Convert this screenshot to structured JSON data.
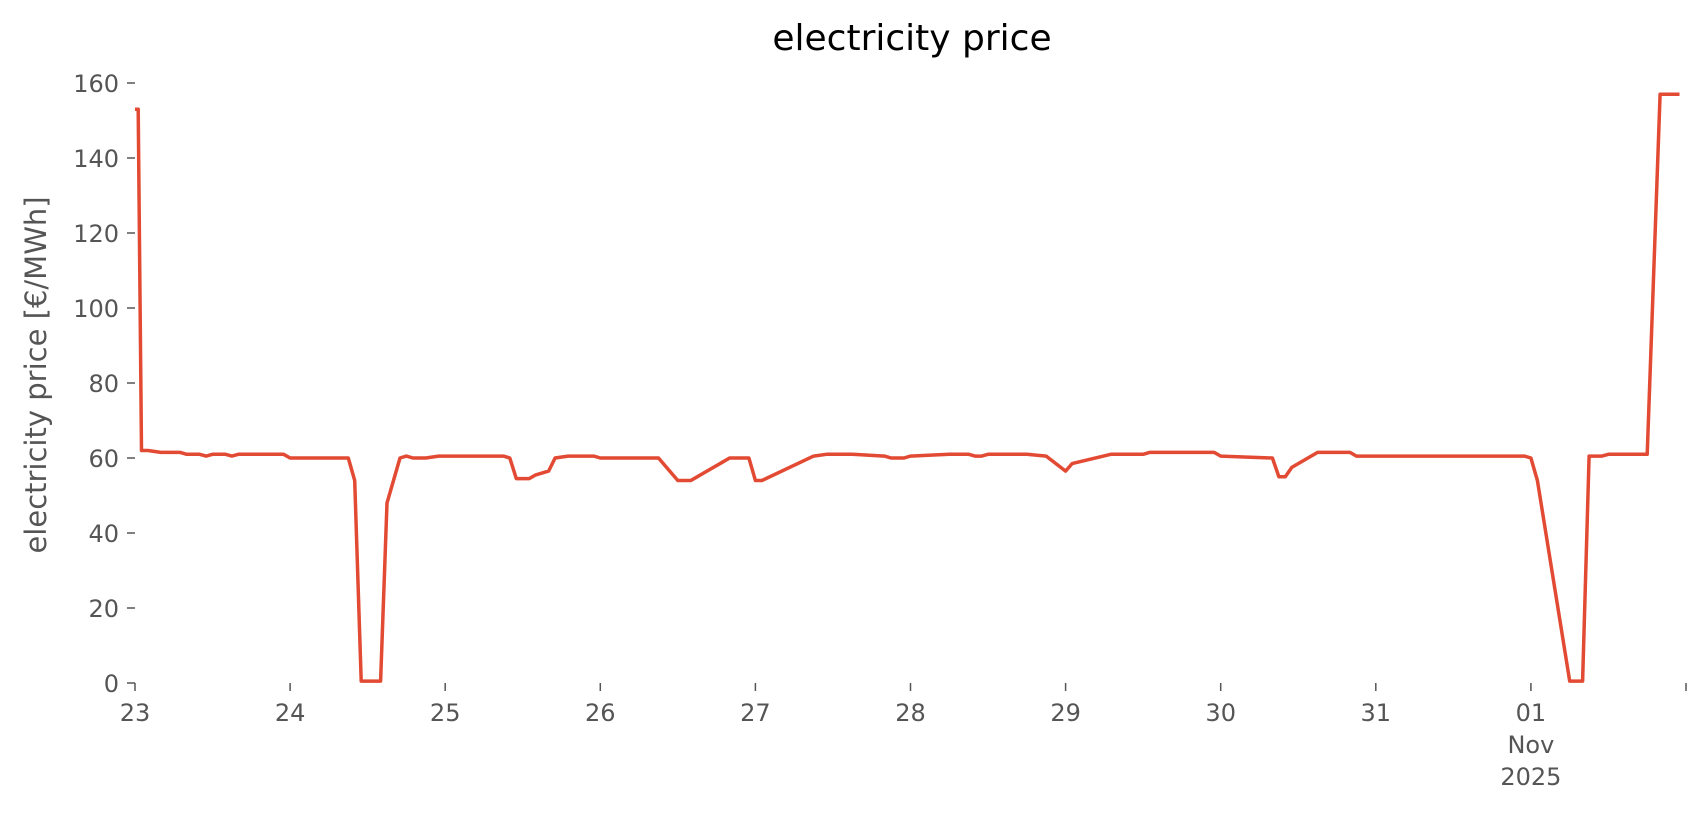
{
  "chart_data": {
    "type": "line",
    "title": "electricity price",
    "xlabel": "",
    "ylabel": "electricity price [€/MWh]",
    "ylim": [
      0,
      160
    ],
    "xlim": [
      "2025-10-23T00:00",
      "2025-11-01T23:00"
    ],
    "grid": false,
    "legend": "none",
    "yticks": [
      0,
      20,
      40,
      60,
      80,
      100,
      120,
      140,
      160
    ],
    "ytick_labels": [
      "0",
      "20",
      "40",
      "60",
      "80",
      "100",
      "120",
      "140",
      "160"
    ],
    "xticks": [
      {
        "x": "2025-10-23T00:00",
        "label": "23"
      },
      {
        "x": "2025-10-24T00:00",
        "label": "24"
      },
      {
        "x": "2025-10-25T00:00",
        "label": "25"
      },
      {
        "x": "2025-10-26T00:00",
        "label": "26"
      },
      {
        "x": "2025-10-27T00:00",
        "label": "27"
      },
      {
        "x": "2025-10-28T00:00",
        "label": "28"
      },
      {
        "x": "2025-10-29T00:00",
        "label": "29"
      },
      {
        "x": "2025-10-30T00:00",
        "label": "30"
      },
      {
        "x": "2025-10-31T00:00",
        "label": "31"
      },
      {
        "x": "2025-11-01T00:00",
        "label": "01\nNov\n2025"
      },
      {
        "x": "2025-11-02T00:00",
        "label": ""
      }
    ],
    "series": [
      {
        "color": "#e24a33",
        "x": [
          "2025-10-23T00:00",
          "2025-10-23T00:30",
          "2025-10-23T01:00",
          "2025-10-23T02:00",
          "2025-10-23T04:00",
          "2025-10-23T07:00",
          "2025-10-23T08:00",
          "2025-10-23T10:00",
          "2025-10-23T11:00",
          "2025-10-23T12:00",
          "2025-10-23T14:00",
          "2025-10-23T15:00",
          "2025-10-23T16:00",
          "2025-10-23T23:00",
          "2025-10-24T00:00",
          "2025-10-24T09:00",
          "2025-10-24T10:00",
          "2025-10-24T11:00",
          "2025-10-24T12:00",
          "2025-10-24T14:00",
          "2025-10-24T15:00",
          "2025-10-24T17:00",
          "2025-10-24T18:00",
          "2025-10-24T19:00",
          "2025-10-24T21:00",
          "2025-10-24T23:00",
          "2025-10-25T00:00",
          "2025-10-25T09:00",
          "2025-10-25T10:00",
          "2025-10-25T11:00",
          "2025-10-25T13:00",
          "2025-10-25T14:00",
          "2025-10-25T16:00",
          "2025-10-25T17:00",
          "2025-10-25T19:00",
          "2025-10-25T23:00",
          "2025-10-26T00:00",
          "2025-10-26T08:00",
          "2025-10-26T09:00",
          "2025-10-26T12:00",
          "2025-10-26T14:00",
          "2025-10-26T15:00",
          "2025-10-26T16:00",
          "2025-10-26T19:00",
          "2025-10-26T20:00",
          "2025-10-26T22:00",
          "2025-10-26T23:00",
          "2025-10-27T00:00",
          "2025-10-27T01:00",
          "2025-10-27T09:00",
          "2025-10-27T11:00",
          "2025-10-27T14:00",
          "2025-10-27T15:00",
          "2025-10-27T20:00",
          "2025-10-27T21:00",
          "2025-10-27T22:00",
          "2025-10-27T23:00",
          "2025-10-28T00:00",
          "2025-10-28T06:00",
          "2025-10-28T07:00",
          "2025-10-28T09:00",
          "2025-10-28T10:00",
          "2025-10-28T11:00",
          "2025-10-28T12:00",
          "2025-10-28T13:00",
          "2025-10-28T14:00",
          "2025-10-28T16:00",
          "2025-10-28T18:00",
          "2025-10-28T21:00",
          "2025-10-29T00:00",
          "2025-10-29T01:00",
          "2025-10-29T07:00",
          "2025-10-29T09:00",
          "2025-10-29T10:00",
          "2025-10-29T11:00",
          "2025-10-29T12:00",
          "2025-10-29T13:00",
          "2025-10-29T14:00",
          "2025-10-29T16:00",
          "2025-10-29T23:00",
          "2025-10-30T00:00",
          "2025-10-30T08:00",
          "2025-10-30T09:00",
          "2025-10-30T10:00",
          "2025-10-30T11:00",
          "2025-10-30T15:00",
          "2025-10-30T16:00",
          "2025-10-30T17:00",
          "2025-10-30T20:00",
          "2025-10-30T21:00",
          "2025-10-30T23:00",
          "2025-10-31T00:00",
          "2025-10-31T23:00",
          "2025-11-01T00:00",
          "2025-11-01T01:00",
          "2025-11-01T06:00",
          "2025-11-01T07:00",
          "2025-11-01T08:00",
          "2025-11-01T09:00",
          "2025-11-01T11:00",
          "2025-11-01T12:00",
          "2025-11-01T14:00",
          "2025-11-01T15:00",
          "2025-11-01T18:00",
          "2025-11-01T20:00",
          "2025-11-01T23:00"
        ],
        "y": [
          153,
          153,
          62,
          62,
          61.5,
          61.5,
          61,
          61,
          60.5,
          61,
          61,
          60.5,
          61,
          61,
          60,
          60,
          54,
          0.5,
          0.5,
          0.5,
          48,
          60,
          60.5,
          60,
          60,
          60.5,
          60.5,
          60.5,
          60,
          54.5,
          54.5,
          55.5,
          56.5,
          60,
          60.5,
          60.5,
          60,
          60,
          60,
          54,
          54,
          55,
          56,
          59,
          60,
          60,
          60,
          54,
          54,
          60.5,
          61,
          61,
          61,
          60.5,
          60,
          60,
          60,
          60.5,
          61,
          61,
          61,
          60.5,
          60.5,
          61,
          61,
          61,
          61,
          61,
          60.5,
          56.5,
          58.5,
          61,
          61,
          61,
          61,
          61,
          61.5,
          61.5,
          61.5,
          61.5,
          60.5,
          60,
          55,
          55,
          57.5,
          61.5,
          61.5,
          61.5,
          61.5,
          60.5,
          60.5,
          60.5,
          60.5,
          60,
          54,
          0.5,
          0.5,
          0.5,
          60.5,
          60.5,
          61,
          61,
          61,
          61,
          157,
          157
        ]
      }
    ]
  }
}
